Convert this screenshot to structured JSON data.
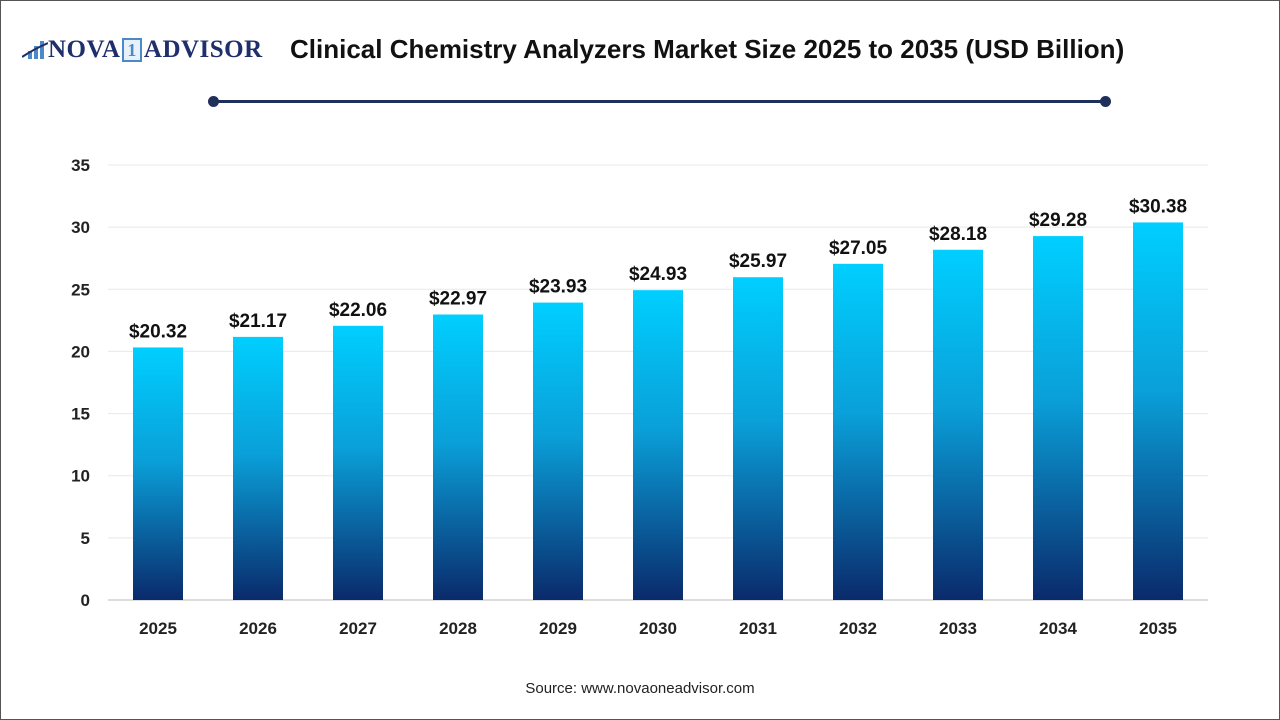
{
  "logo": {
    "part1": "NOVA",
    "part2": "1",
    "part3": "ADVISOR"
  },
  "title": "Clinical Chemistry Analyzers Market Size 2025 to 2035 (USD Billion)",
  "source": "Source: www.novaoneadvisor.com",
  "chart_data": {
    "type": "bar",
    "title": "Clinical Chemistry Analyzers Market Size 2025 to 2035 (USD Billion)",
    "categories": [
      "2025",
      "2026",
      "2027",
      "2028",
      "2029",
      "2030",
      "2031",
      "2032",
      "2033",
      "2034",
      "2035"
    ],
    "values": [
      20.32,
      21.17,
      22.06,
      22.97,
      23.93,
      24.93,
      25.97,
      27.05,
      28.18,
      29.28,
      30.38
    ],
    "labels": [
      "$20.32",
      "$21.17",
      "$22.06",
      "$22.97",
      "$23.93",
      "$24.93",
      "$25.97",
      "$27.05",
      "$28.18",
      "$29.28",
      "$30.38"
    ],
    "ylim": [
      0,
      35
    ],
    "yticks": [
      0,
      5,
      10,
      15,
      20,
      25,
      30,
      35
    ],
    "grid": true,
    "colors": {
      "top": "#00cfff",
      "bottom": "#0a2a6b"
    }
  }
}
